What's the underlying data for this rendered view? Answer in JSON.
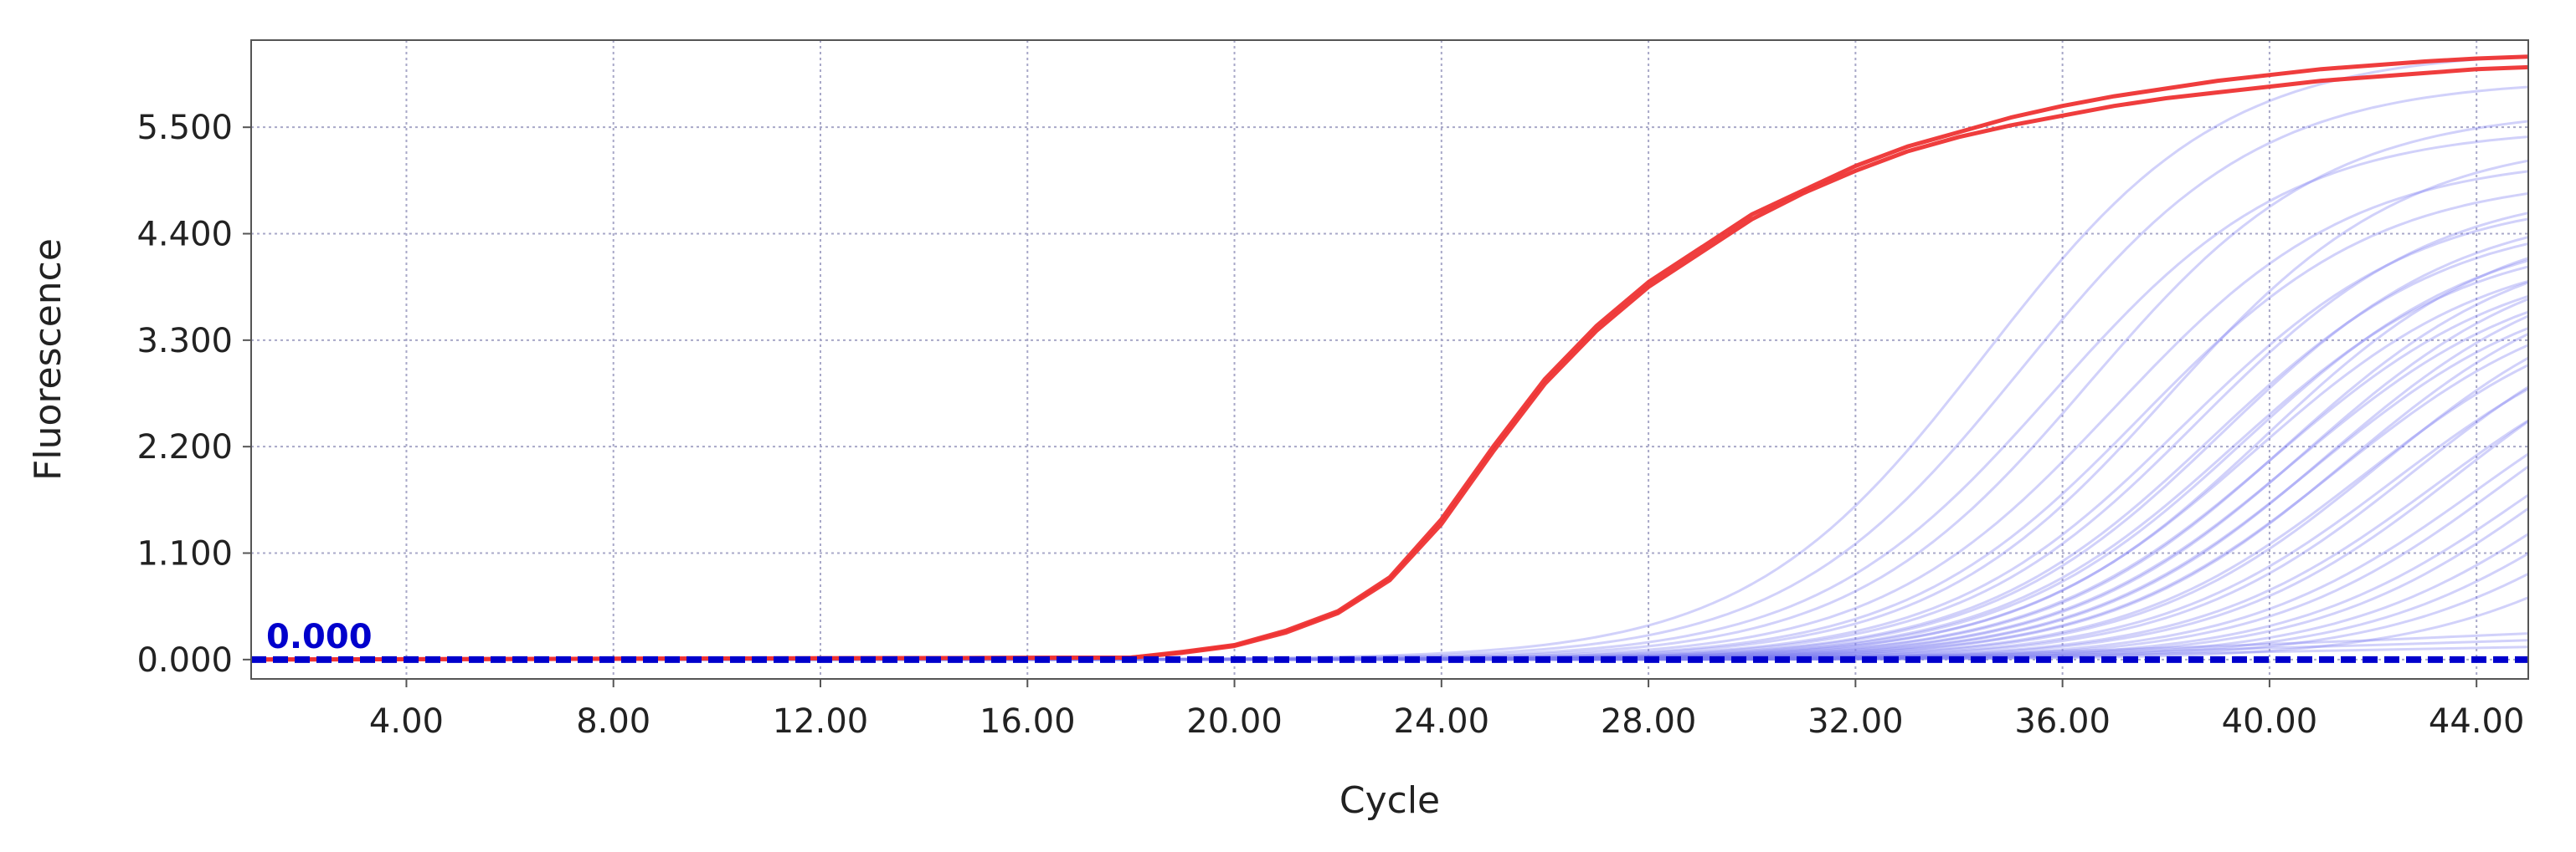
{
  "chart_data": {
    "type": "line",
    "title": "",
    "xlabel": "Cycle",
    "ylabel": "Fluorescence",
    "xlim": [
      1,
      45
    ],
    "ylim": [
      -0.2,
      6.4
    ],
    "x_ticks": [
      4,
      8,
      12,
      16,
      20,
      24,
      28,
      32,
      36,
      40,
      44
    ],
    "x_tick_labels": [
      "4.00",
      "8.00",
      "12.00",
      "16.00",
      "20.00",
      "24.00",
      "28.00",
      "32.00",
      "36.00",
      "40.00",
      "44.00"
    ],
    "y_ticks": [
      0,
      1.1,
      2.2,
      3.3,
      4.4,
      5.5
    ],
    "y_tick_labels": [
      "0.000",
      "1.100",
      "2.200",
      "3.300",
      "4.400",
      "5.500"
    ],
    "grid": true,
    "threshold": {
      "value": 0.0,
      "label": "0.000",
      "color": "#0000cc"
    },
    "colors": {
      "positive": "#ee3333",
      "samples": "#7b7bf0",
      "grid": "#a8a8c8",
      "axis": "#555555"
    },
    "series": [
      {
        "color": "#ee3333",
        "group": "positive",
        "x": [
          1,
          18,
          19,
          20,
          21,
          22,
          23,
          24,
          25,
          26,
          27,
          28,
          29,
          30,
          31,
          32,
          33,
          34,
          35,
          36,
          37,
          38,
          39,
          40,
          41,
          42,
          43,
          44,
          45
        ],
        "y": [
          0,
          0.02,
          0.08,
          0.15,
          0.3,
          0.5,
          0.85,
          1.45,
          2.2,
          2.9,
          3.45,
          3.9,
          4.25,
          4.6,
          4.85,
          5.1,
          5.3,
          5.45,
          5.6,
          5.72,
          5.82,
          5.9,
          5.98,
          6.04,
          6.1,
          6.14,
          6.18,
          6.21,
          6.23
        ]
      },
      {
        "color": "#ee3333",
        "group": "positive",
        "x": [
          1,
          18,
          19,
          20,
          21,
          22,
          23,
          24,
          25,
          26,
          27,
          28,
          29,
          30,
          31,
          32,
          33,
          34,
          35,
          36,
          37,
          38,
          39,
          40,
          41,
          42,
          43,
          44,
          45
        ],
        "y": [
          0,
          0.02,
          0.07,
          0.14,
          0.28,
          0.48,
          0.82,
          1.4,
          2.15,
          2.85,
          3.4,
          3.85,
          4.2,
          4.55,
          4.82,
          5.05,
          5.25,
          5.4,
          5.52,
          5.62,
          5.72,
          5.8,
          5.86,
          5.92,
          5.98,
          6.02,
          6.06,
          6.1,
          6.12
        ]
      },
      {
        "color": "#7b7bf0",
        "group": "sample",
        "ct": 34.5,
        "plateau": 6.3
      },
      {
        "color": "#7b7bf0",
        "group": "sample",
        "ct": 35.2,
        "plateau": 6.0
      },
      {
        "color": "#7b7bf0",
        "group": "sample",
        "ct": 35.8,
        "plateau": 5.5
      },
      {
        "color": "#7b7bf0",
        "group": "sample",
        "ct": 36.5,
        "plateau": 5.7
      },
      {
        "color": "#7b7bf0",
        "group": "sample",
        "ct": 37.0,
        "plateau": 5.2
      },
      {
        "color": "#7b7bf0",
        "group": "sample",
        "ct": 37.5,
        "plateau": 5.0
      },
      {
        "color": "#7b7bf0",
        "group": "sample",
        "ct": 38.0,
        "plateau": 5.4
      },
      {
        "color": "#7b7bf0",
        "group": "sample",
        "ct": 38.3,
        "plateau": 4.8
      },
      {
        "color": "#7b7bf0",
        "group": "sample",
        "ct": 38.6,
        "plateau": 4.9
      },
      {
        "color": "#7b7bf0",
        "group": "sample",
        "ct": 38.9,
        "plateau": 4.6
      },
      {
        "color": "#7b7bf0",
        "group": "sample",
        "ct": 39.1,
        "plateau": 4.7
      },
      {
        "color": "#7b7bf0",
        "group": "sample",
        "ct": 39.3,
        "plateau": 4.4
      },
      {
        "color": "#7b7bf0",
        "group": "sample",
        "ct": 39.5,
        "plateau": 4.5
      },
      {
        "color": "#7b7bf0",
        "group": "sample",
        "ct": 39.7,
        "plateau": 4.3
      },
      {
        "color": "#7b7bf0",
        "group": "sample",
        "ct": 39.9,
        "plateau": 4.6
      },
      {
        "color": "#7b7bf0",
        "group": "sample",
        "ct": 40.1,
        "plateau": 4.2
      },
      {
        "color": "#7b7bf0",
        "group": "sample",
        "ct": 40.3,
        "plateau": 4.4
      },
      {
        "color": "#7b7bf0",
        "group": "sample",
        "ct": 40.5,
        "plateau": 4.1
      },
      {
        "color": "#7b7bf0",
        "group": "sample",
        "ct": 40.7,
        "plateau": 4.3
      },
      {
        "color": "#7b7bf0",
        "group": "sample",
        "ct": 40.9,
        "plateau": 4.0
      },
      {
        "color": "#7b7bf0",
        "group": "sample",
        "ct": 41.1,
        "plateau": 4.2
      },
      {
        "color": "#7b7bf0",
        "group": "sample",
        "ct": 41.3,
        "plateau": 3.9
      },
      {
        "color": "#7b7bf0",
        "group": "sample",
        "ct": 41.5,
        "plateau": 4.1
      },
      {
        "color": "#7b7bf0",
        "group": "sample",
        "ct": 41.8,
        "plateau": 3.8
      },
      {
        "color": "#7b7bf0",
        "group": "sample",
        "ct": 42.1,
        "plateau": 4.0
      },
      {
        "color": "#7b7bf0",
        "group": "sample",
        "ct": 42.4,
        "plateau": 3.7
      },
      {
        "color": "#7b7bf0",
        "group": "sample",
        "ct": 42.8,
        "plateau": 3.9
      },
      {
        "color": "#7b7bf0",
        "group": "sample",
        "ct": 43.2,
        "plateau": 3.6
      },
      {
        "color": "#7b7bf0",
        "group": "sample",
        "ct": 43.6,
        "plateau": 3.8
      },
      {
        "color": "#7b7bf0",
        "group": "sample",
        "ct": 44.0,
        "plateau": 3.5
      },
      {
        "color": "#7b7bf0",
        "group": "sample",
        "ct": 44.5,
        "plateau": 3.6
      },
      {
        "color": "#7b7bf0",
        "group": "sample",
        "ct": 45.0,
        "plateau": 3.4
      },
      {
        "color": "#7b7bf0",
        "group": "sample",
        "ct": 45.5,
        "plateau": 3.5
      },
      {
        "color": "#7b7bf0",
        "group": "sample",
        "ct": 46.0,
        "plateau": 3.3
      },
      {
        "color": "#7b7bf0",
        "group": "sample",
        "ct": 46.5,
        "plateau": 3.2
      },
      {
        "color": "#7b7bf0",
        "group": "sample",
        "ct": 47.0,
        "plateau": 3.0
      },
      {
        "color": "#7b7bf0",
        "group": "sample",
        "ct": 48.0,
        "plateau": 3.0
      },
      {
        "color": "#7b7bf0",
        "group": "baseline",
        "x": [
          1,
          30,
          34,
          38,
          42,
          45
        ],
        "y": [
          0,
          0.01,
          0.05,
          0.12,
          0.2,
          0.27
        ]
      },
      {
        "color": "#7b7bf0",
        "group": "baseline",
        "x": [
          1,
          30,
          34,
          38,
          42,
          45
        ],
        "y": [
          0,
          0.01,
          0.04,
          0.09,
          0.15,
          0.2
        ]
      },
      {
        "color": "#7b7bf0",
        "group": "baseline",
        "x": [
          1,
          30,
          34,
          38,
          42,
          45
        ],
        "y": [
          0,
          0.0,
          0.03,
          0.06,
          0.1,
          0.13
        ]
      }
    ]
  }
}
